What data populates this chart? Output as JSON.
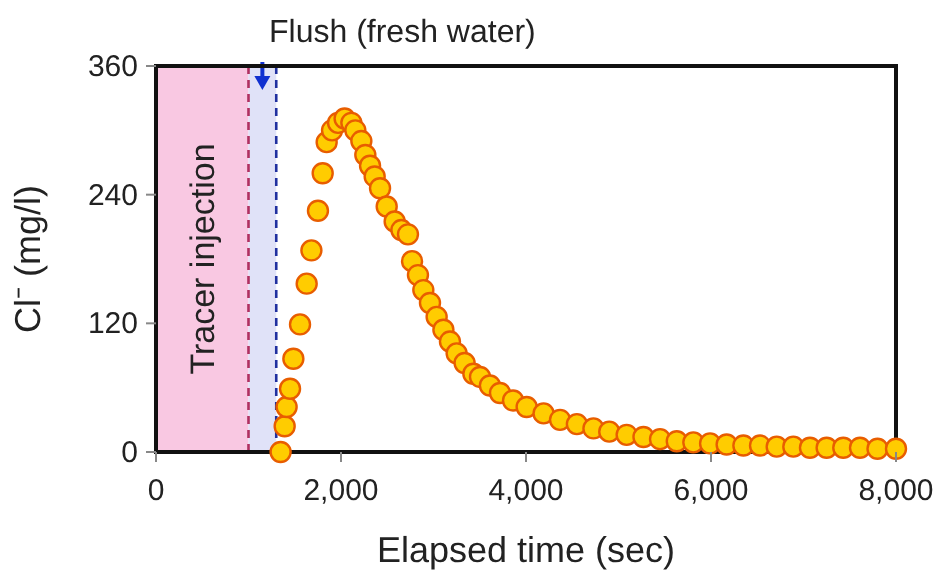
{
  "chart_data": {
    "type": "scatter",
    "xlabel": "Elapsed time (sec)",
    "ylabel": "Cl⁻ (mg/l)",
    "xlim": [
      0,
      8000
    ],
    "xticks": [
      {
        "value": 0,
        "label": "0"
      },
      {
        "value": 2000,
        "label": "2,000"
      },
      {
        "value": 4000,
        "label": "4,000"
      },
      {
        "value": 6000,
        "label": "6,000"
      },
      {
        "value": 8000,
        "label": "8,000"
      }
    ],
    "ylim": [
      0,
      360
    ],
    "yticks": [
      0,
      120,
      240,
      360
    ],
    "grid": false,
    "marker": "circle",
    "series": [
      {
        "color": "#ffcc00",
        "x": [
          1347,
          1391,
          1412,
          1449,
          1485,
          1557,
          1629,
          1680,
          1751,
          1802,
          1845,
          1903,
          1968,
          2039,
          2112,
          2155,
          2220,
          2263,
          2314,
          2364,
          2422,
          2494,
          2580,
          2653,
          2724,
          2768,
          2832,
          2890,
          2962,
          3034,
          3107,
          3178,
          3250,
          3336,
          3431,
          3503,
          3610,
          3719,
          3860,
          4007,
          4190,
          4368,
          4550,
          4729,
          4900,
          5088,
          5270,
          5449,
          5630,
          5809,
          5990,
          6169,
          6350,
          6530,
          6710,
          6890,
          7070,
          7250,
          7430,
          7611,
          7800,
          8000
        ],
        "values": [
          0,
          24,
          42,
          59,
          87,
          119,
          157,
          188,
          225,
          260,
          289,
          300,
          307,
          311,
          307,
          300,
          290,
          277,
          267,
          257,
          246,
          229,
          215,
          207,
          203,
          178,
          165,
          151,
          139,
          126,
          114,
          103,
          92,
          83,
          73,
          70,
          62,
          55,
          48,
          42,
          36,
          30,
          26,
          22,
          19,
          16,
          14,
          12,
          10,
          9,
          8,
          7,
          6,
          6,
          5,
          5,
          4,
          4,
          4,
          4,
          3,
          3
        ]
      }
    ],
    "bands": [
      {
        "axis": "x",
        "from": 0,
        "to": 1000,
        "label": "Tracer injection",
        "color": "#f9c8e2"
      },
      {
        "axis": "x",
        "from": 1000,
        "to": 1300,
        "label": "Flush (fresh water)",
        "color": "#e0e2f8"
      }
    ],
    "ref_lines": [
      {
        "axis": "x",
        "value": 1000,
        "color": "#b03060",
        "line_style": "dashed"
      },
      {
        "axis": "x",
        "value": 1300,
        "color": "#2030a0",
        "line_style": "dashed"
      }
    ]
  }
}
